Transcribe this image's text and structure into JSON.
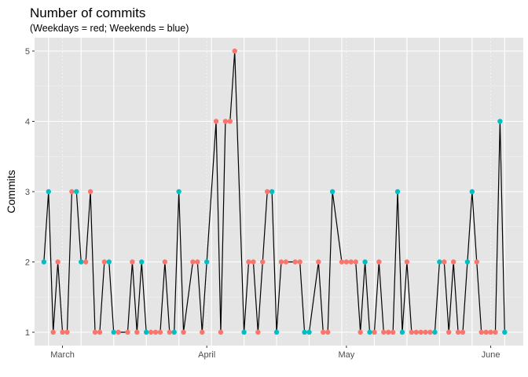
{
  "chart_data": {
    "type": "line",
    "title": "Number of commits",
    "subtitle": "(Weekdays = red; Weekends = blue)",
    "xlabel": "",
    "ylabel": "Commits",
    "ylim": [
      0.81,
      5.19
    ],
    "yticks": [
      "1",
      "2",
      "3",
      "4",
      "5"
    ],
    "xlim": [
      "2018-02-23",
      "2018-06-08"
    ],
    "xticks": [
      {
        "label": "March",
        "date": "2018-03-01"
      },
      {
        "label": "April",
        "date": "2018-04-01"
      },
      {
        "label": "May",
        "date": "2018-05-01"
      },
      {
        "label": "June",
        "date": "2018-06-01"
      }
    ],
    "grid": true,
    "background": "#e5e5e5",
    "colors": {
      "weekday": "#f8766d",
      "weekend": "#00bfc4",
      "line": "#000000"
    },
    "series": [
      {
        "points": [
          {
            "date": "2018-02-25",
            "commits": 2,
            "type": "weekend"
          },
          {
            "date": "2018-02-26",
            "commits": 3,
            "type": "weekend"
          },
          {
            "date": "2018-02-27",
            "commits": 1,
            "type": "weekday"
          },
          {
            "date": "2018-02-28",
            "commits": 2,
            "type": "weekday"
          },
          {
            "date": "2018-03-01",
            "commits": 1,
            "type": "weekday"
          },
          {
            "date": "2018-03-02",
            "commits": 1,
            "type": "weekday"
          },
          {
            "date": "2018-03-03",
            "commits": 3,
            "type": "weekday"
          },
          {
            "date": "2018-03-04",
            "commits": 3,
            "type": "weekend"
          },
          {
            "date": "2018-03-05",
            "commits": 2,
            "type": "weekend"
          },
          {
            "date": "2018-03-06",
            "commits": 2,
            "type": "weekday"
          },
          {
            "date": "2018-03-07",
            "commits": 3,
            "type": "weekday"
          },
          {
            "date": "2018-03-08",
            "commits": 1,
            "type": "weekday"
          },
          {
            "date": "2018-03-09",
            "commits": 1,
            "type": "weekday"
          },
          {
            "date": "2018-03-10",
            "commits": 2,
            "type": "weekday"
          },
          {
            "date": "2018-03-11",
            "commits": 2,
            "type": "weekend"
          },
          {
            "date": "2018-03-12",
            "commits": 1,
            "type": "weekend"
          },
          {
            "date": "2018-03-13",
            "commits": 1,
            "type": "weekday"
          },
          {
            "date": "2018-03-15",
            "commits": 1,
            "type": "weekday"
          },
          {
            "date": "2018-03-16",
            "commits": 2,
            "type": "weekday"
          },
          {
            "date": "2018-03-17",
            "commits": 1,
            "type": "weekday"
          },
          {
            "date": "2018-03-18",
            "commits": 2,
            "type": "weekend"
          },
          {
            "date": "2018-03-19",
            "commits": 1,
            "type": "weekend"
          },
          {
            "date": "2018-03-20",
            "commits": 1,
            "type": "weekday"
          },
          {
            "date": "2018-03-21",
            "commits": 1,
            "type": "weekday"
          },
          {
            "date": "2018-03-22",
            "commits": 1,
            "type": "weekday"
          },
          {
            "date": "2018-03-23",
            "commits": 2,
            "type": "weekday"
          },
          {
            "date": "2018-03-24",
            "commits": 1,
            "type": "weekday"
          },
          {
            "date": "2018-03-25",
            "commits": 1,
            "type": "weekend"
          },
          {
            "date": "2018-03-26",
            "commits": 3,
            "type": "weekend"
          },
          {
            "date": "2018-03-27",
            "commits": 1,
            "type": "weekday"
          },
          {
            "date": "2018-03-29",
            "commits": 2,
            "type": "weekday"
          },
          {
            "date": "2018-03-30",
            "commits": 2,
            "type": "weekday"
          },
          {
            "date": "2018-03-31",
            "commits": 1,
            "type": "weekday"
          },
          {
            "date": "2018-04-01",
            "commits": 2,
            "type": "weekend"
          },
          {
            "date": "2018-04-03",
            "commits": 4,
            "type": "weekday"
          },
          {
            "date": "2018-04-04",
            "commits": 1,
            "type": "weekday"
          },
          {
            "date": "2018-04-05",
            "commits": 4,
            "type": "weekday"
          },
          {
            "date": "2018-04-06",
            "commits": 4,
            "type": "weekday"
          },
          {
            "date": "2018-04-07",
            "commits": 5,
            "type": "weekday"
          },
          {
            "date": "2018-04-09",
            "commits": 1,
            "type": "weekend"
          },
          {
            "date": "2018-04-10",
            "commits": 2,
            "type": "weekday"
          },
          {
            "date": "2018-04-11",
            "commits": 2,
            "type": "weekday"
          },
          {
            "date": "2018-04-12",
            "commits": 1,
            "type": "weekday"
          },
          {
            "date": "2018-04-13",
            "commits": 2,
            "type": "weekday"
          },
          {
            "date": "2018-04-14",
            "commits": 3,
            "type": "weekday"
          },
          {
            "date": "2018-04-15",
            "commits": 3,
            "type": "weekend"
          },
          {
            "date": "2018-04-16",
            "commits": 1,
            "type": "weekend"
          },
          {
            "date": "2018-04-17",
            "commits": 2,
            "type": "weekday"
          },
          {
            "date": "2018-04-18",
            "commits": 2,
            "type": "weekday"
          },
          {
            "date": "2018-04-20",
            "commits": 2,
            "type": "weekday"
          },
          {
            "date": "2018-04-21",
            "commits": 2,
            "type": "weekday"
          },
          {
            "date": "2018-04-22",
            "commits": 1,
            "type": "weekend"
          },
          {
            "date": "2018-04-23",
            "commits": 1,
            "type": "weekend"
          },
          {
            "date": "2018-04-25",
            "commits": 2,
            "type": "weekday"
          },
          {
            "date": "2018-04-26",
            "commits": 1,
            "type": "weekday"
          },
          {
            "date": "2018-04-27",
            "commits": 1,
            "type": "weekday"
          },
          {
            "date": "2018-04-28",
            "commits": 3,
            "type": "weekend"
          },
          {
            "date": "2018-04-30",
            "commits": 2,
            "type": "weekday"
          },
          {
            "date": "2018-05-01",
            "commits": 2,
            "type": "weekday"
          },
          {
            "date": "2018-05-02",
            "commits": 2,
            "type": "weekday"
          },
          {
            "date": "2018-05-03",
            "commits": 2,
            "type": "weekday"
          },
          {
            "date": "2018-05-04",
            "commits": 1,
            "type": "weekday"
          },
          {
            "date": "2018-05-05",
            "commits": 2,
            "type": "weekend"
          },
          {
            "date": "2018-05-06",
            "commits": 1,
            "type": "weekend"
          },
          {
            "date": "2018-05-07",
            "commits": 1,
            "type": "weekday"
          },
          {
            "date": "2018-05-08",
            "commits": 2,
            "type": "weekday"
          },
          {
            "date": "2018-05-09",
            "commits": 1,
            "type": "weekday"
          },
          {
            "date": "2018-05-10",
            "commits": 1,
            "type": "weekday"
          },
          {
            "date": "2018-05-11",
            "commits": 1,
            "type": "weekday"
          },
          {
            "date": "2018-05-12",
            "commits": 3,
            "type": "weekend"
          },
          {
            "date": "2018-05-13",
            "commits": 1,
            "type": "weekend"
          },
          {
            "date": "2018-05-14",
            "commits": 2,
            "type": "weekday"
          },
          {
            "date": "2018-05-15",
            "commits": 1,
            "type": "weekday"
          },
          {
            "date": "2018-05-16",
            "commits": 1,
            "type": "weekday"
          },
          {
            "date": "2018-05-17",
            "commits": 1,
            "type": "weekday"
          },
          {
            "date": "2018-05-18",
            "commits": 1,
            "type": "weekday"
          },
          {
            "date": "2018-05-19",
            "commits": 1,
            "type": "weekday"
          },
          {
            "date": "2018-05-20",
            "commits": 1,
            "type": "weekend"
          },
          {
            "date": "2018-05-21",
            "commits": 2,
            "type": "weekend"
          },
          {
            "date": "2018-05-22",
            "commits": 2,
            "type": "weekday"
          },
          {
            "date": "2018-05-23",
            "commits": 1,
            "type": "weekday"
          },
          {
            "date": "2018-05-24",
            "commits": 2,
            "type": "weekday"
          },
          {
            "date": "2018-05-25",
            "commits": 1,
            "type": "weekday"
          },
          {
            "date": "2018-05-26",
            "commits": 1,
            "type": "weekday"
          },
          {
            "date": "2018-05-27",
            "commits": 2,
            "type": "weekend"
          },
          {
            "date": "2018-05-28",
            "commits": 3,
            "type": "weekend"
          },
          {
            "date": "2018-05-29",
            "commits": 2,
            "type": "weekday"
          },
          {
            "date": "2018-05-30",
            "commits": 1,
            "type": "weekday"
          },
          {
            "date": "2018-05-31",
            "commits": 1,
            "type": "weekday"
          },
          {
            "date": "2018-06-01",
            "commits": 1,
            "type": "weekday"
          },
          {
            "date": "2018-06-02",
            "commits": 1,
            "type": "weekday"
          },
          {
            "date": "2018-06-03",
            "commits": 4,
            "type": "weekend"
          },
          {
            "date": "2018-06-04",
            "commits": 1,
            "type": "weekend"
          }
        ]
      }
    ]
  }
}
